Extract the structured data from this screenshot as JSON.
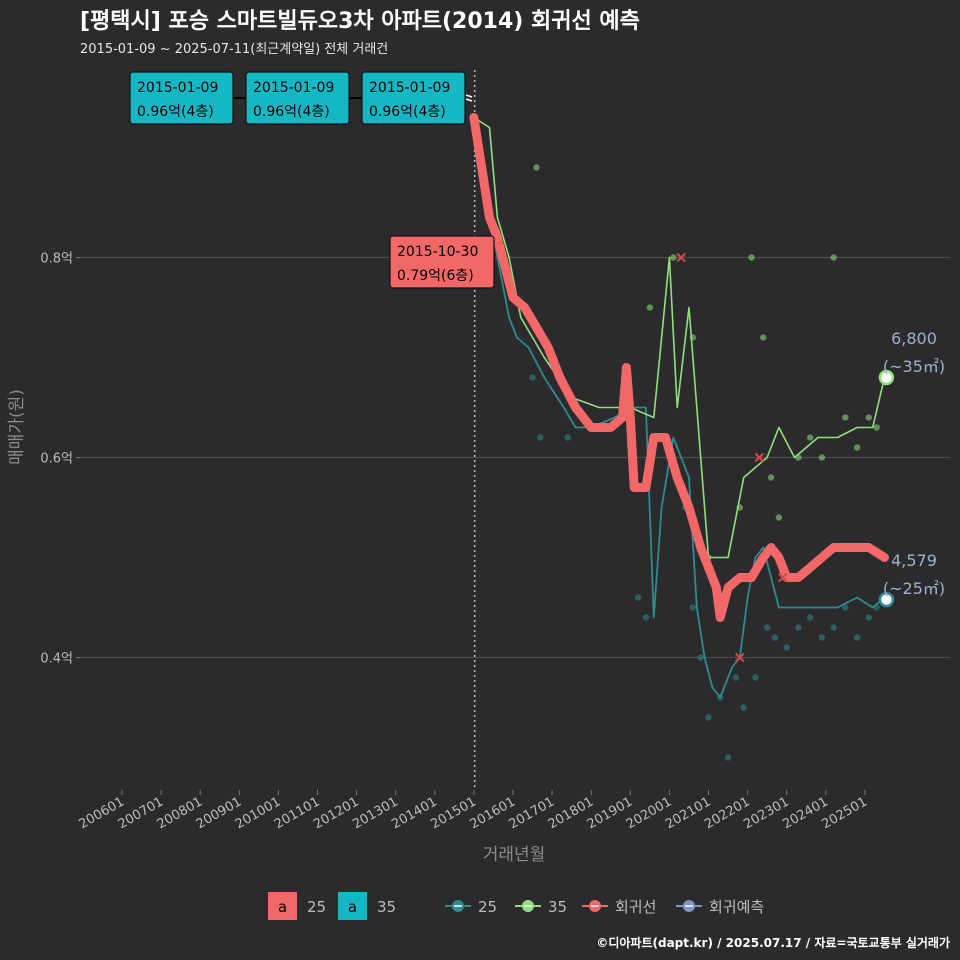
{
  "title": "[평택시] 포승 스마트빌듀오3차 아파트(2014) 회귀선 예측",
  "subtitle": "2015-01-09 ~ 2025-07-11(최근계약일) 전체 거래건",
  "source": "©디아파트(dapt.kr) / 2025.07.17 / 자료=국토교통부 실거래가",
  "colors": {
    "s25": "#2e8b8f",
    "s35": "#8fe07a",
    "reg": "#f26868",
    "pred": "#7f95c9",
    "box35": "#13b8c4",
    "box25": "#f26868",
    "bg": "#2b2b2d"
  },
  "chart_data": {
    "type": "line",
    "xlabel": "거래년월",
    "ylabel": "매매가(원)",
    "x_tick_labels": [
      "200601",
      "200701",
      "200801",
      "200901",
      "201001",
      "201101",
      "201201",
      "201301",
      "201401",
      "201501",
      "201601",
      "201701",
      "201801",
      "201901",
      "202001",
      "202101",
      "202201",
      "202301",
      "202401",
      "202501"
    ],
    "y_tick_labels": [
      "0.4억",
      "0.6억",
      "0.8억"
    ],
    "y_ticks": [
      0.4,
      0.6,
      0.8
    ],
    "ylim": [
      0.27,
      0.96
    ],
    "xlim": [
      2005.9,
      2025.7
    ],
    "vline_x": 2015.02,
    "series": [
      {
        "name": "25",
        "points": [
          [
            2015.0,
            0.94
          ],
          [
            2015.3,
            0.87
          ],
          [
            2015.6,
            0.8
          ],
          [
            2015.9,
            0.74
          ],
          [
            2016.1,
            0.72
          ],
          [
            2016.4,
            0.71
          ],
          [
            2016.8,
            0.68
          ],
          [
            2017.3,
            0.65
          ],
          [
            2017.6,
            0.63
          ],
          [
            2018.0,
            0.63
          ],
          [
            2018.6,
            0.64
          ],
          [
            2019.0,
            0.65
          ],
          [
            2019.4,
            0.65
          ],
          [
            2019.6,
            0.44
          ],
          [
            2019.8,
            0.55
          ],
          [
            2020.1,
            0.62
          ],
          [
            2020.3,
            0.6
          ],
          [
            2020.5,
            0.58
          ],
          [
            2020.7,
            0.45
          ],
          [
            2020.9,
            0.4
          ],
          [
            2021.1,
            0.37
          ],
          [
            2021.3,
            0.36
          ],
          [
            2021.6,
            0.39
          ],
          [
            2021.8,
            0.4
          ],
          [
            2022.0,
            0.46
          ],
          [
            2022.2,
            0.5
          ],
          [
            2022.4,
            0.51
          ],
          [
            2022.6,
            0.48
          ],
          [
            2022.8,
            0.45
          ],
          [
            2023.2,
            0.45
          ],
          [
            2023.8,
            0.45
          ],
          [
            2024.3,
            0.45
          ],
          [
            2024.8,
            0.46
          ],
          [
            2025.2,
            0.45
          ],
          [
            2025.5,
            0.46
          ]
        ]
      },
      {
        "name": "35",
        "points": [
          [
            2015.0,
            0.94
          ],
          [
            2015.4,
            0.93
          ],
          [
            2015.6,
            0.84
          ],
          [
            2015.9,
            0.8
          ],
          [
            2016.2,
            0.74
          ],
          [
            2016.8,
            0.7
          ],
          [
            2017.5,
            0.66
          ],
          [
            2018.2,
            0.65
          ],
          [
            2019.0,
            0.65
          ],
          [
            2019.6,
            0.64
          ],
          [
            2020.0,
            0.8
          ],
          [
            2020.2,
            0.65
          ],
          [
            2020.5,
            0.75
          ],
          [
            2020.7,
            0.65
          ],
          [
            2021.0,
            0.5
          ],
          [
            2021.5,
            0.5
          ],
          [
            2021.9,
            0.58
          ],
          [
            2022.2,
            0.59
          ],
          [
            2022.5,
            0.6
          ],
          [
            2022.8,
            0.63
          ],
          [
            2023.2,
            0.6
          ],
          [
            2023.8,
            0.62
          ],
          [
            2024.3,
            0.62
          ],
          [
            2024.8,
            0.63
          ],
          [
            2025.2,
            0.63
          ],
          [
            2025.5,
            0.68
          ]
        ]
      },
      {
        "name": "회귀선",
        "points": [
          [
            2015.0,
            0.94
          ],
          [
            2015.2,
            0.89
          ],
          [
            2015.4,
            0.84
          ],
          [
            2015.6,
            0.82
          ],
          [
            2015.8,
            0.79
          ],
          [
            2016.0,
            0.76
          ],
          [
            2016.3,
            0.75
          ],
          [
            2016.6,
            0.73
          ],
          [
            2016.9,
            0.71
          ],
          [
            2017.2,
            0.68
          ],
          [
            2017.6,
            0.65
          ],
          [
            2018.0,
            0.63
          ],
          [
            2018.5,
            0.63
          ],
          [
            2018.8,
            0.64
          ],
          [
            2018.9,
            0.69
          ],
          [
            2019.0,
            0.64
          ],
          [
            2019.1,
            0.57
          ],
          [
            2019.4,
            0.57
          ],
          [
            2019.6,
            0.62
          ],
          [
            2019.9,
            0.62
          ],
          [
            2020.2,
            0.58
          ],
          [
            2020.5,
            0.55
          ],
          [
            2020.8,
            0.51
          ],
          [
            2021.0,
            0.49
          ],
          [
            2021.2,
            0.47
          ],
          [
            2021.3,
            0.44
          ],
          [
            2021.5,
            0.47
          ],
          [
            2021.8,
            0.48
          ],
          [
            2022.1,
            0.48
          ],
          [
            2022.4,
            0.5
          ],
          [
            2022.6,
            0.51
          ],
          [
            2022.8,
            0.5
          ],
          [
            2023.0,
            0.48
          ],
          [
            2023.3,
            0.48
          ],
          [
            2023.6,
            0.49
          ],
          [
            2023.9,
            0.5
          ],
          [
            2024.2,
            0.51
          ],
          [
            2024.5,
            0.51
          ],
          [
            2024.8,
            0.51
          ],
          [
            2025.1,
            0.51
          ],
          [
            2025.5,
            0.5
          ]
        ]
      }
    ],
    "scatter": {
      "s25": [
        [
          2016.5,
          0.68
        ],
        [
          2016.7,
          0.62
        ],
        [
          2017.4,
          0.62
        ],
        [
          2019.2,
          0.46
        ],
        [
          2019.4,
          0.44
        ],
        [
          2020.4,
          0.55
        ],
        [
          2020.6,
          0.45
        ],
        [
          2020.8,
          0.4
        ],
        [
          2021.0,
          0.34
        ],
        [
          2021.3,
          0.36
        ],
        [
          2021.5,
          0.3
        ],
        [
          2021.7,
          0.38
        ],
        [
          2021.9,
          0.35
        ],
        [
          2022.2,
          0.38
        ],
        [
          2022.5,
          0.43
        ],
        [
          2022.7,
          0.42
        ],
        [
          2023.0,
          0.41
        ],
        [
          2023.3,
          0.43
        ],
        [
          2023.6,
          0.44
        ],
        [
          2023.9,
          0.42
        ],
        [
          2024.2,
          0.43
        ],
        [
          2024.5,
          0.45
        ],
        [
          2024.8,
          0.42
        ],
        [
          2025.1,
          0.44
        ],
        [
          2025.3,
          0.45
        ]
      ],
      "s35": [
        [
          2016.6,
          0.89
        ],
        [
          2019.5,
          0.75
        ],
        [
          2020.1,
          0.8
        ],
        [
          2020.6,
          0.72
        ],
        [
          2021.0,
          0.5
        ],
        [
          2021.8,
          0.55
        ],
        [
          2022.1,
          0.8
        ],
        [
          2022.4,
          0.72
        ],
        [
          2022.6,
          0.58
        ],
        [
          2022.8,
          0.54
        ],
        [
          2023.3,
          0.6
        ],
        [
          2023.6,
          0.62
        ],
        [
          2023.9,
          0.6
        ],
        [
          2024.2,
          0.8
        ],
        [
          2024.5,
          0.64
        ],
        [
          2024.8,
          0.61
        ],
        [
          2025.1,
          0.64
        ],
        [
          2025.3,
          0.63
        ]
      ],
      "crosses": [
        [
          2020.3,
          0.8
        ],
        [
          2021.8,
          0.4
        ],
        [
          2022.3,
          0.6
        ],
        [
          2022.9,
          0.48
        ]
      ]
    },
    "latest": [
      {
        "name": "25",
        "x": 2025.55,
        "y": 0.4579,
        "value": "4,579",
        "area": "(~25㎡)"
      },
      {
        "name": "35",
        "x": 2025.55,
        "y": 0.68,
        "value": "6,800",
        "area": "(~35㎡)"
      }
    ],
    "annotations": [
      {
        "date": "2015-01-09",
        "price": "0.96억(4층)",
        "type": "35"
      },
      {
        "date": "2015-01-09",
        "price": "0.96억(4층)",
        "type": "35"
      },
      {
        "date": "2015-01-09",
        "price": "0.96억(4층)",
        "type": "35"
      },
      {
        "date": "2015-10-30",
        "price": "0.79억(6층)",
        "type": "25"
      }
    ],
    "legend": {
      "placement": "bottom",
      "box_items": [
        {
          "letter": "a",
          "name": "25"
        },
        {
          "letter": "a",
          "name": "35"
        }
      ],
      "line_items": [
        "25",
        "35",
        "회귀선",
        "회귀예측"
      ]
    }
  }
}
